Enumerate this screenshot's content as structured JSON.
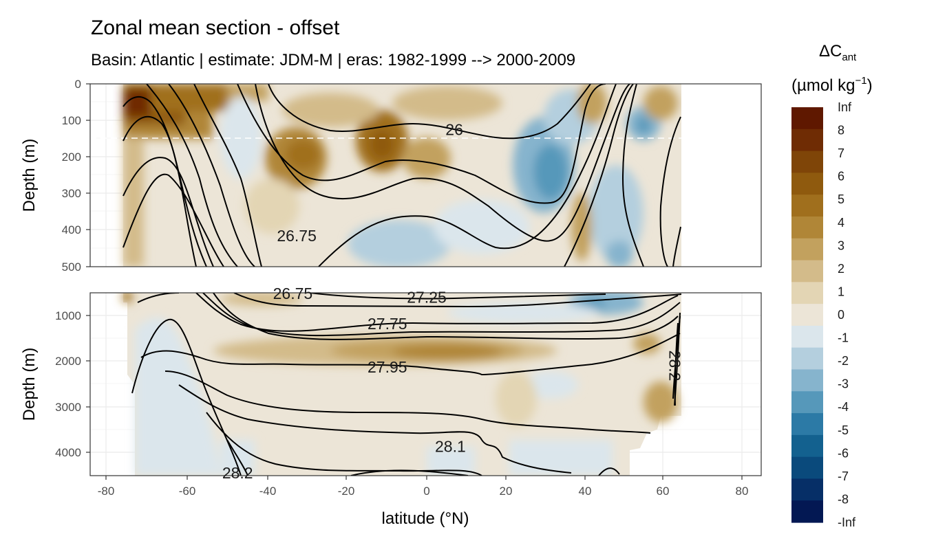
{
  "title": "Zonal mean section - offset",
  "subtitle": "Basin: Atlantic | estimate: JDM-M | eras: 1982-1999 --> 2000-2009",
  "chart_data": {
    "type": "heatmap",
    "title": "Zonal mean section - offset",
    "subtitle": "Basin: Atlantic | estimate: JDM-M | eras: 1982-1999 --> 2000-2009",
    "xlabel": "latitude (°N)",
    "ylabel": "Depth (m)",
    "xlim": [
      -85,
      85
    ],
    "x_ticks": [
      -80,
      -60,
      -40,
      -20,
      0,
      20,
      40,
      60,
      80
    ],
    "grid": true,
    "panels": [
      {
        "name": "upper",
        "ylim": [
          0,
          500
        ],
        "y_ticks": [
          0,
          100,
          200,
          300,
          400,
          500
        ],
        "reference_depth": 150
      },
      {
        "name": "lower",
        "ylim": [
          500,
          4500
        ],
        "y_ticks": [
          1000,
          2000,
          3000,
          4000
        ]
      }
    ],
    "legend": {
      "title": "ΔC",
      "title_subscript": "ant",
      "unit": "(µmol kg",
      "unit_superscript": "−1",
      "unit_close": ")",
      "placement": "right",
      "breaks": [
        "Inf",
        "8",
        "7",
        "6",
        "5",
        "4",
        "3",
        "2",
        "1",
        "0",
        "-1",
        "-2",
        "-3",
        "-4",
        "-5",
        "-6",
        "-7",
        "-8",
        "-Inf"
      ],
      "colors": [
        "#5f1800",
        "#6f2c04",
        "#7f4508",
        "#8f5a0e",
        "#a06f1d",
        "#b08637",
        "#c2a15e",
        "#d3bb8a",
        "#e3d5b4",
        "#ece5d7",
        "#dbe6ec",
        "#b4cfde",
        "#86b4cd",
        "#5698ba",
        "#2c7aa6",
        "#13618f",
        "#0a4a7c",
        "#062f67",
        "#031853"
      ]
    },
    "contour_labels": [
      {
        "text": "26",
        "x": 7,
        "depth": 125
      },
      {
        "text": "26.75",
        "x": -33,
        "depth": 415
      },
      {
        "text": "26.75",
        "x": -34,
        "depth": 520
      },
      {
        "text": "27.25",
        "x": 0,
        "depth": 600
      },
      {
        "text": "27.75",
        "x": -10,
        "depth": 1180
      },
      {
        "text": "27.95",
        "x": -10,
        "depth": 2130
      },
      {
        "text": "28.1",
        "x": 6,
        "depth": 3870
      },
      {
        "text": "28.2",
        "x": -48,
        "depth": 4450
      },
      {
        "text": "28.2",
        "x": 63,
        "depth": 2100
      }
    ],
    "field_notes": {
      "strong_positive": "near 60-77°S in upper 150 m (up to Inf)",
      "positive_core_upper": "around 30°S and 10°S at 150-250 m (5-6)",
      "negative_core_upper": "around 30-35°N at 200-300 m (-3 to -4) and 55°N near 100 m",
      "mid_depth_positive_band": "27.75-27.95 layer between 40°S and 50°N at 1500-2200 m (2-3)",
      "deep_negative": "south of 40°S below 1000 m (-1)"
    }
  }
}
